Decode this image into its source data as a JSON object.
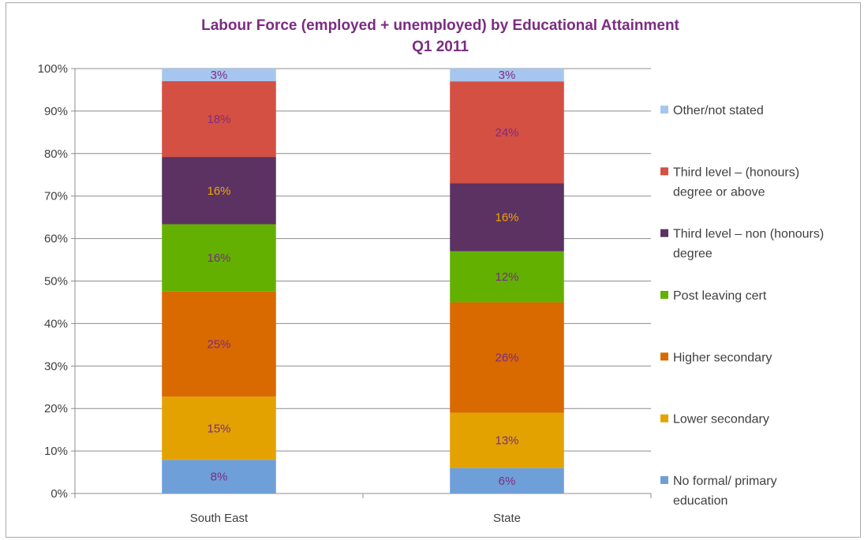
{
  "chart_data": {
    "type": "bar",
    "stacked": true,
    "percent_stacked": true,
    "title": "Labour Force (employed + unemployed) by Educational Attainment",
    "subtitle": "Q1 2011",
    "xlabel": "",
    "ylabel": "",
    "ylim": [
      0,
      100
    ],
    "y_ticks": [
      "0%",
      "10%",
      "20%",
      "30%",
      "40%",
      "50%",
      "60%",
      "70%",
      "80%",
      "90%",
      "100%"
    ],
    "grid": true,
    "legend_position": "right",
    "categories": [
      "South East",
      "State"
    ],
    "series": [
      {
        "name": "No formal/ primary education",
        "legend_lines": [
          "No formal/ primary",
          "education"
        ],
        "values": [
          8,
          6
        ],
        "labels": [
          "8%",
          "6%"
        ],
        "color": "#6f9fd8",
        "label_color": "#7b2c82"
      },
      {
        "name": "Lower secondary",
        "legend_lines": [
          "Lower secondary"
        ],
        "values": [
          15,
          13
        ],
        "labels": [
          "15%",
          "13%"
        ],
        "color": "#e3a200",
        "label_color": "#7b2c82"
      },
      {
        "name": "Higher secondary",
        "legend_lines": [
          "Higher secondary"
        ],
        "values": [
          25,
          26
        ],
        "labels": [
          "25%",
          "26%"
        ],
        "color": "#d86a00",
        "label_color": "#7b2c82"
      },
      {
        "name": "Post leaving cert",
        "legend_lines": [
          "Post leaving cert"
        ],
        "values": [
          16,
          12
        ],
        "labels": [
          "16%",
          "12%"
        ],
        "color": "#63b000",
        "label_color": "#7b2c82"
      },
      {
        "name": "Third level – non (honours) degree",
        "legend_lines": [
          "Third level – non (honours)",
          "degree"
        ],
        "values": [
          16,
          16
        ],
        "labels": [
          "16%",
          "16%"
        ],
        "color": "#5b3262",
        "label_color": "#f0a500"
      },
      {
        "name": "Third level – (honours) degree or above",
        "legend_lines": [
          "Third level – (honours)",
          "degree or above"
        ],
        "values": [
          18,
          24
        ],
        "labels": [
          "18%",
          "24%"
        ],
        "color": "#d45042",
        "label_color": "#7b2c82"
      },
      {
        "name": "Other/not stated",
        "legend_lines": [
          "Other/not stated"
        ],
        "values": [
          3,
          3
        ],
        "labels": [
          "3%",
          "3%"
        ],
        "color": "#a6c6f0",
        "label_color": "#7b2c82"
      }
    ]
  }
}
